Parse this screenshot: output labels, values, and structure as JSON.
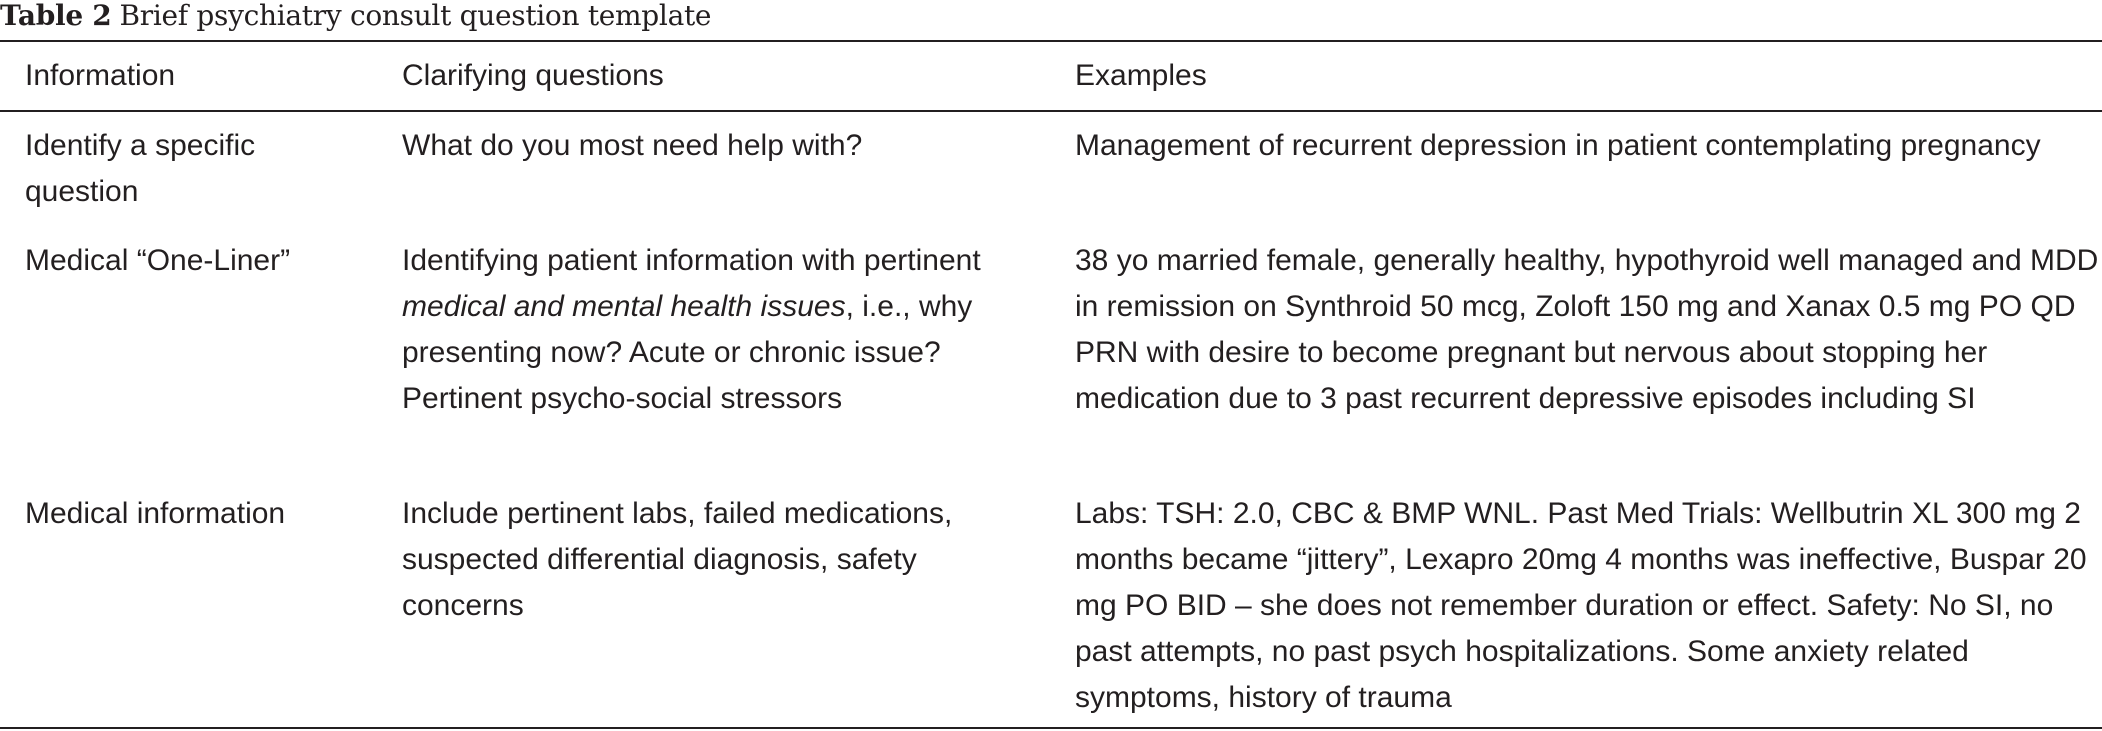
{
  "caption": {
    "label": "Table 2",
    "title": "Brief psychiatry consult question template"
  },
  "table": {
    "headers": [
      "Information",
      "Clarifying questions",
      "Examples"
    ],
    "rows": [
      {
        "information": "Identify a specific question",
        "clarifying": "What do you most need help with?",
        "example": "Management of recurrent depression in patient contemplating pregnancy"
      },
      {
        "information": "Medical “One-Liner”",
        "clarifying_pre": "Identifying patient information with pertinent ",
        "clarifying_em": "medical and mental health issues",
        "clarifying_post": ", i.e., why presenting now? Acute or chronic issue? Pertinent psycho-social stressors",
        "example": "38 yo married female, generally healthy, hypothyroid well managed and MDD in remission on Synthroid 50 mcg, Zoloft 150 mg and Xanax 0.5 mg PO QD PRN with desire to become pregnant but nervous about stopping her medication due to 3 past recurrent depressive episodes including SI"
      },
      {
        "information": "Medical information",
        "clarifying": "Include pertinent labs, failed medications, suspected differential diagnosis, safety concerns",
        "example": "Labs: TSH: 2.0, CBC & BMP WNL. Past Med Trials: Wellbutrin XL 300 mg 2 months became “jittery”, Lexapro 20mg 4 months was ineffective, Buspar 20 mg PO BID – she does not remember duration or effect. Safety: No SI, no past attempts, no past psych hospitalizations. Some anxiety related symptoms, history of trauma"
      }
    ]
  }
}
